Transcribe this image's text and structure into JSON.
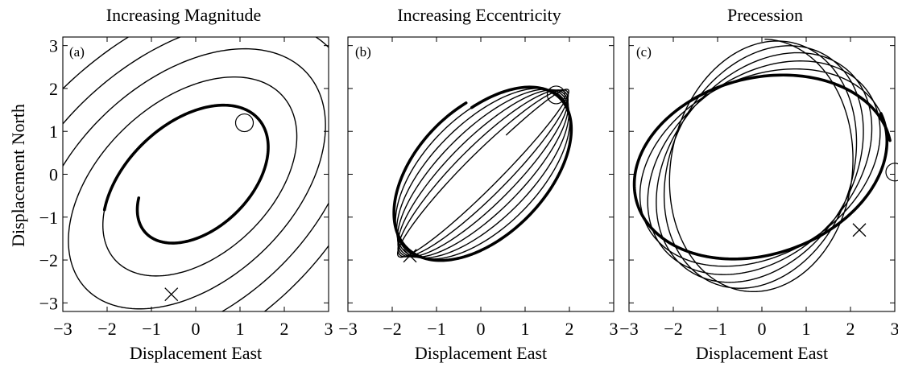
{
  "chart_data": [
    {
      "type": "line",
      "panel_label": "(a)",
      "title": "Increasing Magnitude",
      "xlabel": "Displacement East",
      "ylabel": "Displacement North",
      "xlim": [
        -3,
        3
      ],
      "ylim": [
        -3.2,
        3.2
      ],
      "xticks": [
        "−3",
        "−2",
        "−1",
        "0",
        "1",
        "2",
        "3"
      ],
      "yticks": [
        "−3",
        "−2",
        "−1",
        "0",
        "1",
        "2",
        "3"
      ],
      "series": [
        {
          "values": {
            "shape": "expanding tilted-ellipse spiral",
            "turns": 5,
            "start": [
              1.1,
              1.2
            ],
            "end": [
              -0.55,
              -2.8
            ]
          }
        }
      ],
      "markers": {
        "start_circle": [
          1.1,
          1.2
        ],
        "end_x": [
          -0.55,
          -2.8
        ]
      }
    },
    {
      "type": "line",
      "panel_label": "(b)",
      "title": "Increasing Eccentricity",
      "xlabel": "Displacement East",
      "ylabel": "",
      "xlim": [
        -3,
        3
      ],
      "ylim": [
        -3.2,
        3.2
      ],
      "xticks": [
        "−3",
        "−2",
        "−1",
        "0",
        "1",
        "2",
        "3"
      ],
      "yticks": [],
      "series": [
        {
          "values": {
            "shape": "ellipses narrowing along the diagonal",
            "turns": 7,
            "start": [
              1.7,
              1.85
            ],
            "end": [
              -1.6,
              -1.9
            ]
          }
        }
      ],
      "markers": {
        "start_circle": [
          1.7,
          1.85
        ],
        "end_x": [
          -1.6,
          -1.9
        ]
      }
    },
    {
      "type": "line",
      "panel_label": "(c)",
      "title": "Precession",
      "xlabel": "Displacement East",
      "ylabel": "",
      "xlim": [
        -3,
        3
      ],
      "ylim": [
        -3.2,
        3.2
      ],
      "xticks": [
        "−3",
        "−2",
        "−1",
        "0",
        "1",
        "2",
        "3"
      ],
      "yticks": [],
      "series": [
        {
          "values": {
            "shape": "precessing ellipse (a≈3, b≈2)",
            "turns": 6,
            "start": [
              3.0,
              0.05
            ],
            "end": [
              2.2,
              -1.3
            ]
          }
        }
      ],
      "markers": {
        "start_circle": [
          3.0,
          0.05
        ],
        "end_x": [
          2.2,
          -1.3
        ]
      }
    }
  ]
}
